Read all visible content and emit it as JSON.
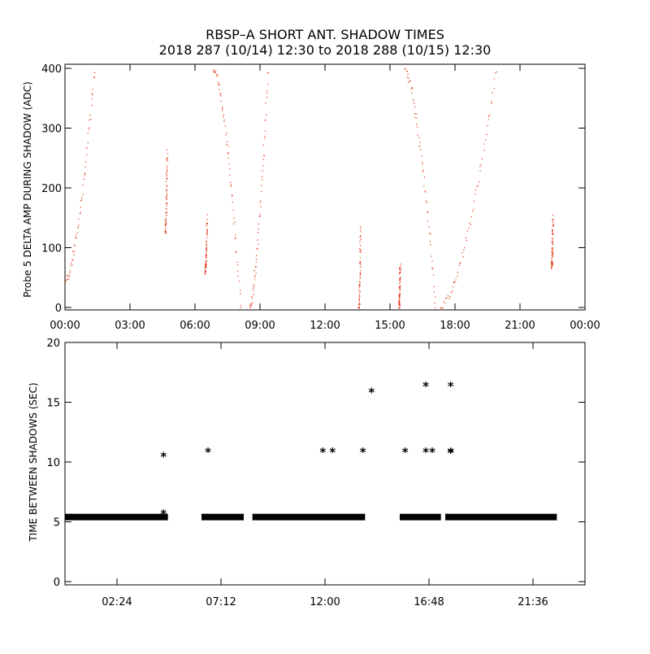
{
  "title": {
    "line1": "RBSP–A SHORT ANT. SHADOW TIMES",
    "line2": "2018 287 (10/14) 12:30 to 2018 288 (10/15) 12:30"
  },
  "colors": {
    "trace": "#e03010",
    "marker": "#000000",
    "axis": "#000000"
  },
  "chart_data": [
    {
      "type": "scatter",
      "ylabel": "Probe 5 DELTA AMP DURING SHADOW (ADC)",
      "xlim": [
        0,
        24
      ],
      "ylim": [
        0,
        400
      ],
      "x_ticks": [
        "00:00",
        "03:00",
        "06:00",
        "09:00",
        "12:00",
        "15:00",
        "18:00",
        "21:00",
        "00:00"
      ],
      "y_ticks": [
        "0",
        "100",
        "200",
        "300",
        "400"
      ],
      "segments": [
        {
          "x0": 0.0,
          "x1": 1.35,
          "y0": 45,
          "y1": 400
        },
        {
          "x0": 4.62,
          "x1": 4.7,
          "y0": 130,
          "y1": 265
        },
        {
          "x0": 6.45,
          "x1": 6.55,
          "y0": 60,
          "y1": 150
        },
        {
          "x0": 6.85,
          "x1": 8.1,
          "y0": 400,
          "y1": 0
        },
        {
          "x0": 8.5,
          "x1": 9.35,
          "y0": 0,
          "y1": 400
        },
        {
          "x0": 13.55,
          "x1": 13.62,
          "y0": 0,
          "y1": 135
        },
        {
          "x0": 15.4,
          "x1": 15.45,
          "y0": 0,
          "y1": 75
        },
        {
          "x0": 15.65,
          "x1": 17.1,
          "y0": 400,
          "y1": 0
        },
        {
          "x0": 17.3,
          "x1": 19.9,
          "y0": 0,
          "y1": 400
        },
        {
          "x0": 22.45,
          "x1": 22.5,
          "y0": 70,
          "y1": 155
        }
      ]
    },
    {
      "type": "scatter",
      "ylabel": "TIME BETWEEN SHADOWS (SEC)",
      "xlim": [
        0,
        24
      ],
      "ylim": [
        0,
        20
      ],
      "x_ticks": [
        "02:24",
        "07:12",
        "12:00",
        "16:48",
        "21:36"
      ],
      "y_ticks": [
        "0",
        "5",
        "10",
        "15",
        "20"
      ],
      "baseline_runs": [
        {
          "x0": 0.0,
          "x1": 4.75,
          "y": 5.4
        },
        {
          "x0": 6.3,
          "x1": 8.25,
          "y": 5.4
        },
        {
          "x0": 8.65,
          "x1": 13.85,
          "y": 5.4
        },
        {
          "x0": 15.45,
          "x1": 17.35,
          "y": 5.4
        },
        {
          "x0": 17.55,
          "x1": 22.7,
          "y": 5.4
        }
      ],
      "points": [
        {
          "x": 4.55,
          "y": 10.5
        },
        {
          "x": 4.55,
          "y": 5.7
        },
        {
          "x": 6.6,
          "y": 10.9
        },
        {
          "x": 11.9,
          "y": 10.9
        },
        {
          "x": 12.35,
          "y": 10.9
        },
        {
          "x": 13.75,
          "y": 10.9
        },
        {
          "x": 14.15,
          "y": 15.9
        },
        {
          "x": 15.7,
          "y": 10.9
        },
        {
          "x": 16.65,
          "y": 16.4
        },
        {
          "x": 16.65,
          "y": 10.9
        },
        {
          "x": 16.95,
          "y": 10.9
        },
        {
          "x": 17.8,
          "y": 16.4
        },
        {
          "x": 17.8,
          "y": 10.9
        },
        {
          "x": 17.8,
          "y": 10.8
        }
      ]
    }
  ]
}
